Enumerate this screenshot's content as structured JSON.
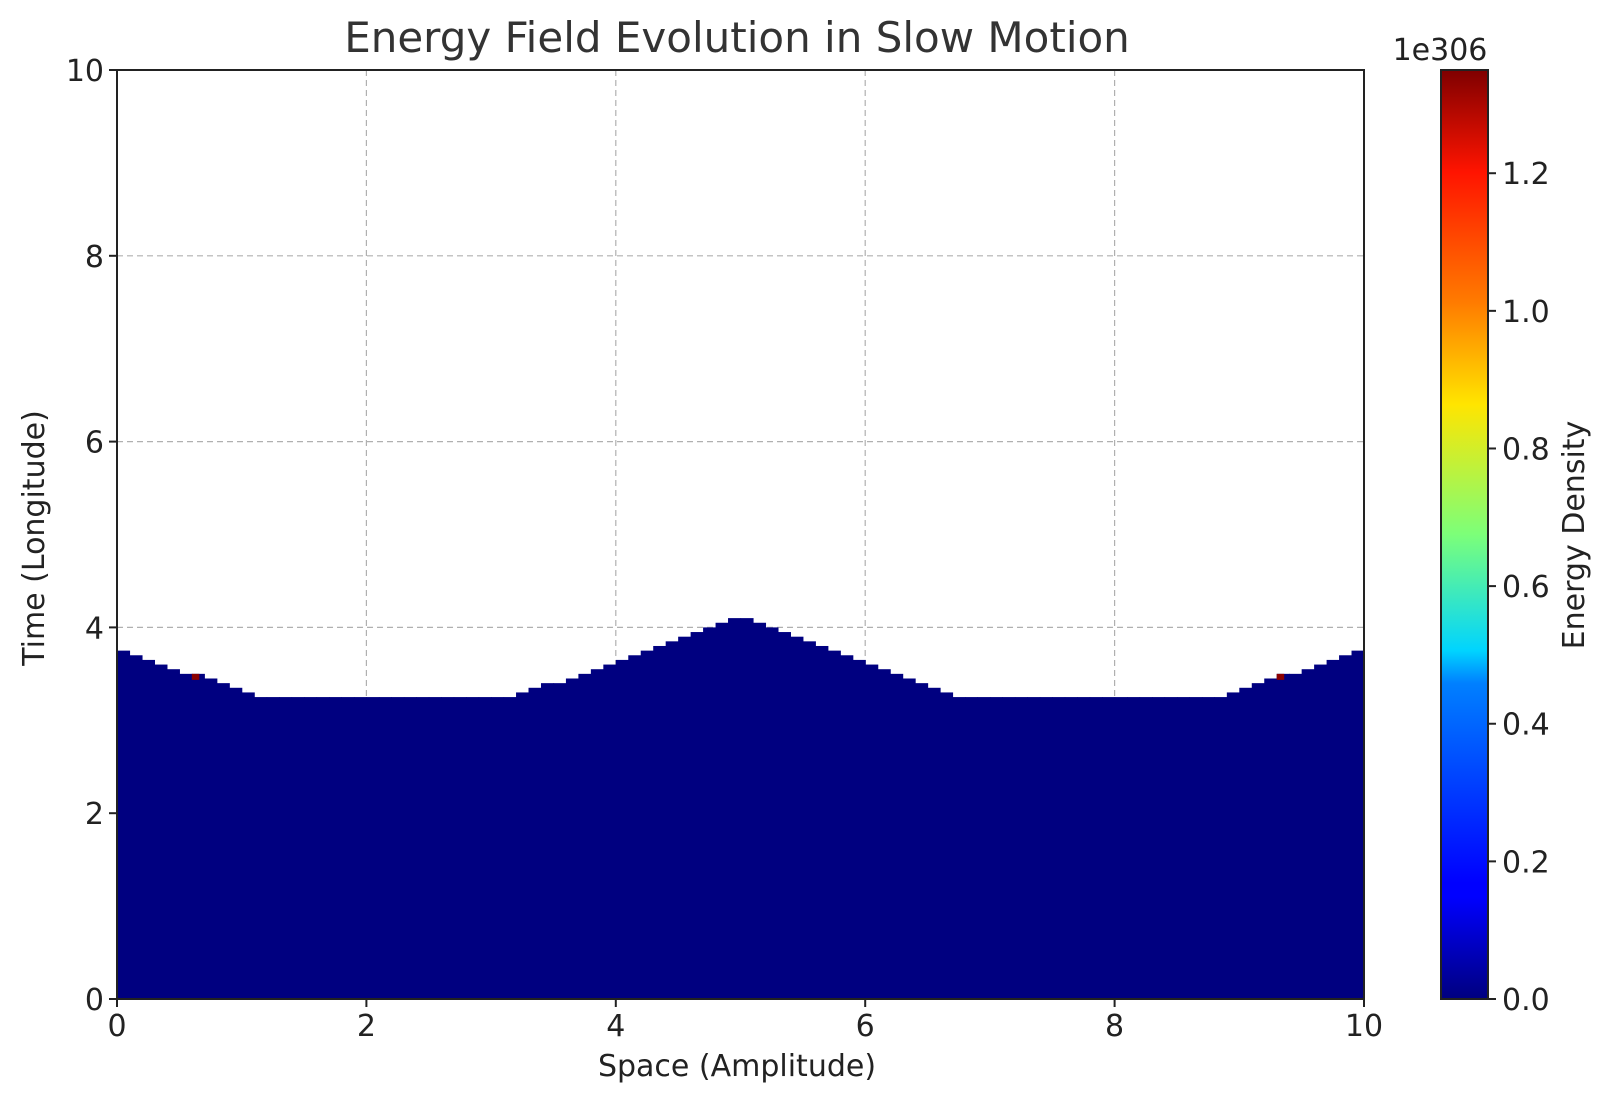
{
  "chart_data": {
    "type": "heatmap",
    "title": "Energy Field Evolution in Slow Motion",
    "xlabel": "Space (Amplitude)",
    "ylabel": "Time (Longitude)",
    "xlim": [
      0,
      10
    ],
    "ylim": [
      0,
      10
    ],
    "xticks": [
      "0",
      "2",
      "4",
      "6",
      "8",
      "10"
    ],
    "yticks": [
      "0",
      "2",
      "4",
      "6",
      "8",
      "10"
    ],
    "grid": true,
    "colormap": "jet",
    "fill_color": "#000080",
    "hot_color": "#8b0000",
    "colorbar": {
      "label": "Energy Density",
      "exponent_label": "1e306",
      "ticks": [
        "0.0",
        "0.2",
        "0.4",
        "0.6",
        "0.8",
        "1.0",
        "1.2"
      ],
      "range": [
        0,
        1.35
      ]
    },
    "x": [
      0.0,
      0.1,
      0.2,
      0.3,
      0.4,
      0.5,
      0.6,
      0.7,
      0.8,
      0.9,
      1.0,
      1.1,
      1.2,
      1.3,
      1.4,
      1.5,
      1.6,
      1.7,
      1.8,
      1.9,
      2.0,
      2.1,
      2.2,
      2.3,
      2.4,
      2.5,
      2.6,
      2.7,
      2.8,
      2.9,
      3.0,
      3.1,
      3.2,
      3.3,
      3.4,
      3.5,
      3.6,
      3.7,
      3.8,
      3.9,
      4.0,
      4.1,
      4.2,
      4.3,
      4.4,
      4.5,
      4.6,
      4.7,
      4.8,
      4.9,
      5.0,
      5.1,
      5.2,
      5.3,
      5.4,
      5.5,
      5.6,
      5.7,
      5.8,
      5.9,
      6.0,
      6.1,
      6.2,
      6.3,
      6.4,
      6.5,
      6.6,
      6.7,
      6.8,
      6.9,
      7.0,
      7.1,
      7.2,
      7.3,
      7.4,
      7.5,
      7.6,
      7.7,
      7.8,
      7.9,
      8.0,
      8.1,
      8.2,
      8.3,
      8.4,
      8.5,
      8.6,
      8.7,
      8.8,
      8.9,
      9.0,
      9.1,
      9.2,
      9.3,
      9.4,
      9.5,
      9.6,
      9.7,
      9.8,
      9.9
    ],
    "front_height": [
      3.75,
      3.7,
      3.65,
      3.6,
      3.55,
      3.5,
      3.5,
      3.45,
      3.4,
      3.35,
      3.3,
      3.25,
      3.25,
      3.25,
      3.25,
      3.25,
      3.25,
      3.25,
      3.25,
      3.25,
      3.25,
      3.25,
      3.25,
      3.25,
      3.25,
      3.25,
      3.25,
      3.25,
      3.25,
      3.25,
      3.25,
      3.25,
      3.3,
      3.35,
      3.4,
      3.4,
      3.45,
      3.5,
      3.55,
      3.6,
      3.65,
      3.7,
      3.75,
      3.8,
      3.85,
      3.9,
      3.95,
      4.0,
      4.05,
      4.1,
      4.1,
      4.05,
      4.0,
      3.95,
      3.9,
      3.85,
      3.8,
      3.75,
      3.7,
      3.65,
      3.6,
      3.55,
      3.5,
      3.45,
      3.4,
      3.35,
      3.3,
      3.25,
      3.25,
      3.25,
      3.25,
      3.25,
      3.25,
      3.25,
      3.25,
      3.25,
      3.25,
      3.25,
      3.25,
      3.25,
      3.25,
      3.25,
      3.25,
      3.25,
      3.25,
      3.25,
      3.25,
      3.25,
      3.25,
      3.3,
      3.35,
      3.4,
      3.45,
      3.5,
      3.5,
      3.55,
      3.6,
      3.65,
      3.7,
      3.75
    ],
    "hot_cells": [
      {
        "x": 0.6,
        "y": 3.5
      },
      {
        "x": 9.3,
        "y": 3.5
      }
    ]
  }
}
